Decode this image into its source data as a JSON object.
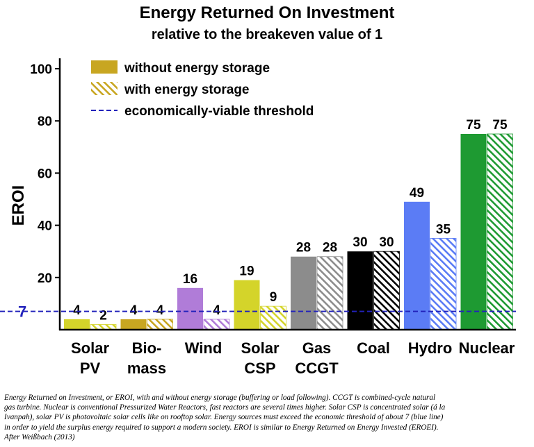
{
  "chart_data": {
    "type": "bar",
    "title": "Energy Returned On Investment",
    "subtitle": "relative to the breakeven value of 1",
    "ylabel": "EROI",
    "xlabel": "",
    "ylim": [
      0,
      100
    ],
    "yticks": [
      20,
      40,
      60,
      80,
      100
    ],
    "categories": [
      {
        "line1": "Solar",
        "line2": "PV"
      },
      {
        "line1": "Bio-",
        "line2": "mass"
      },
      {
        "line1": "Wind",
        "line2": ""
      },
      {
        "line1": "Solar",
        "line2": "CSP"
      },
      {
        "line1": "Gas",
        "line2": "CCGT"
      },
      {
        "line1": "Coal",
        "line2": ""
      },
      {
        "line1": "Hydro",
        "line2": ""
      },
      {
        "line1": "Nuclear",
        "line2": ""
      }
    ],
    "colors": [
      "#d4d42a",
      "#c8a621",
      "#b07cd8",
      "#d4d42a",
      "#8c8c8c",
      "#000000",
      "#5b7cf5",
      "#1e9a32"
    ],
    "series": [
      {
        "name": "without energy storage",
        "style": "solid",
        "values": [
          4,
          4,
          16,
          19,
          28,
          30,
          49,
          75
        ]
      },
      {
        "name": "with energy storage",
        "style": "hatched",
        "values": [
          2,
          4,
          4,
          9,
          28,
          30,
          35,
          75
        ]
      }
    ],
    "threshold": {
      "name": "economically-viable threshold",
      "value": 7,
      "label": "7",
      "color": "#2222bb"
    },
    "legend": {
      "position": "top-left",
      "swatch_solid": "#c8a621",
      "swatch_hatch": "#c8a621"
    }
  },
  "caption": {
    "lines": [
      "Energy Returned on Investment, or EROI, with and without energy storage (buffering or load following). CCGT is combined-cycle natural",
      "gas turbine. Nuclear is conventional Pressurized Water Reactors, fast reactors are several times higher. Solar CSP is concentrated solar (á la",
      "Ivanpah), solar PV is photovoltaic solar cells like on rooftop solar. Energy sources must exceed the economic threshold of about 7 (blue line)",
      "in order to yield the surplus energy required to support a modern society. EROI is similar to Energy Returned on Energy Invested (EROEI).",
      "After Weißbach (2013)"
    ]
  }
}
